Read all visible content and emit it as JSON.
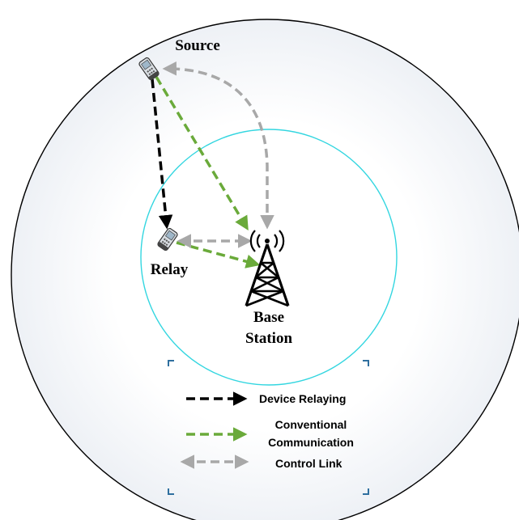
{
  "nodes": {
    "source": "Source",
    "relay": "Relay",
    "base_station_line1": "Base",
    "base_station_line2": "Station"
  },
  "legend": {
    "device_relaying": "Device Relaying",
    "conventional_line1": "Conventional",
    "conventional_line2": "Communication",
    "control_link": "Control Link"
  },
  "colors": {
    "device_relaying": "#000000",
    "conventional": "#6aaa3a",
    "control_link": "#a8a8a8",
    "inner_cell": "#33d6e0",
    "outer_cell": "#000000",
    "corner_marks": "#2f6f9f"
  }
}
